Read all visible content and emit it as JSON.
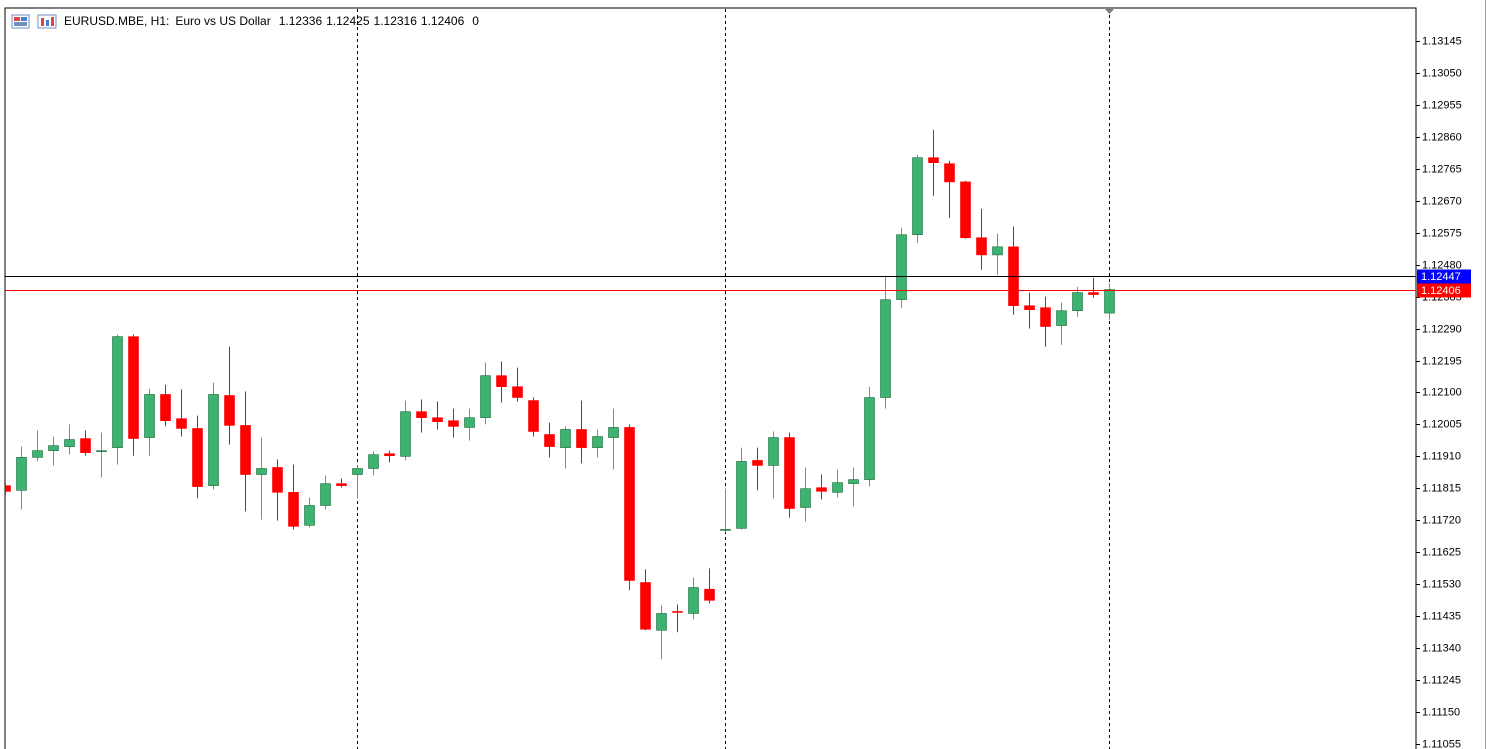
{
  "chart_data": {
    "type": "candlestick",
    "symbol": "EURUSD.MBE, H1:",
    "description": "Euro vs US Dollar",
    "last_volume": 0,
    "up_color": "#3cb371",
    "down_color": "#ff0000",
    "ylim": [
      1.1104,
      1.13243
    ],
    "yticks": [
      1.13145,
      {
        "value": 1.1305,
        "label": "1.13050"
      },
      1.12955,
      {
        "value": 1.1286,
        "label": "1.12860"
      },
      1.12765,
      {
        "value": 1.1267,
        "label": "1.12670"
      },
      1.12575,
      {
        "value": 1.1248,
        "label": "1.12480"
      },
      1.12385,
      {
        "value": 1.1229,
        "label": "1.12290"
      },
      1.12195,
      {
        "value": 1.121,
        "label": "1.12100"
      },
      1.12005,
      {
        "value": 1.1191,
        "label": "1.11910"
      },
      1.11815,
      {
        "value": 1.1172,
        "label": "1.11720"
      },
      1.11625,
      {
        "value": 1.1153,
        "label": "1.11530"
      },
      1.11435,
      {
        "value": 1.1134,
        "label": "1.11340"
      },
      1.11245,
      {
        "value": 1.1115,
        "label": "1.11150"
      },
      1.11055
    ],
    "ask": 1.12447,
    "bid": 1.12406,
    "open": [
      1.11823,
      1.11809,
      1.11907,
      1.11927,
      1.11939,
      1.11963,
      1.11924,
      1.11936,
      1.12266,
      1.11966,
      1.12094,
      1.12022,
      1.11993,
      1.11823,
      1.12091,
      1.12002,
      1.11856,
      1.11877,
      1.11803,
      1.11705,
      1.11764,
      1.11829,
      1.11856,
      1.11874,
      1.11918,
      1.1191,
      1.12043,
      1.12025,
      1.12016,
      1.11996,
      1.12025,
      1.1215,
      1.12117,
      1.12076,
      1.11975,
      1.11936,
      1.1199,
      1.11936,
      1.11966,
      1.11996,
      1.11535,
      1.11393,
      1.11449,
      1.11443,
      1.11515,
      1.1169,
      1.11696,
      1.11898,
      1.11883,
      1.11966,
      1.11758,
      1.11817,
      1.11803,
      1.11829,
      1.11841,
      1.12085,
      1.12376,
      1.12569,
      1.12798,
      1.1278,
      1.12726,
      1.1256,
      1.12509,
      1.12533,
      1.12358,
      1.12352,
      1.12299,
      1.12343,
      1.12397,
      1.12336
    ],
    "high": [
      1.11829,
      1.11939,
      1.11987,
      1.11969,
      1.12005,
      1.11987,
      1.11981,
      1.12272,
      1.12272,
      1.12111,
      1.12123,
      1.12109,
      1.12031,
      1.12129,
      1.12236,
      1.12103,
      1.11966,
      1.11901,
      1.11886,
      1.11788,
      1.11853,
      1.11844,
      1.11883,
      1.11924,
      1.11927,
      1.12076,
      1.12079,
      1.12073,
      1.12052,
      1.12052,
      1.12189,
      1.12192,
      1.12174,
      1.12085,
      1.1201,
      1.11999,
      1.12076,
      1.1199,
      1.12052,
      1.12005,
      1.11574,
      1.11467,
      1.1147,
      1.1155,
      1.11577,
      1.11814,
      1.11936,
      1.11936,
      1.11984,
      1.11981,
      1.11877,
      1.11856,
      1.11871,
      1.11877,
      1.12117,
      1.12444,
      1.1259,
      1.12806,
      1.12881,
      1.12789,
      1.12729,
      1.12646,
      1.12572,
      1.12593,
      1.12397,
      1.12385,
      1.12367,
      1.12414,
      1.12441,
      1.12425
    ],
    "low": [
      1.11797,
      1.11752,
      1.11895,
      1.11883,
      1.11915,
      1.11912,
      1.11847,
      1.11886,
      1.11912,
      1.11912,
      1.11999,
      1.11969,
      1.11785,
      1.11812,
      1.11945,
      1.11746,
      1.11722,
      1.11719,
      1.11693,
      1.11699,
      1.11752,
      1.11817,
      1.11785,
      1.11853,
      1.11892,
      1.11898,
      1.11981,
      1.1199,
      1.11966,
      1.11957,
      1.12005,
      1.1207,
      1.12073,
      1.11969,
      1.11907,
      1.11874,
      1.11889,
      1.11907,
      1.11871,
      1.11512,
      1.11393,
      1.11307,
      1.11387,
      1.11425,
      1.11473,
      1.11684,
      1.11693,
      1.11809,
      1.11785,
      1.11728,
      1.11716,
      1.11782,
      1.11788,
      1.11761,
      1.1182,
      1.12052,
      1.12352,
      1.12545,
      1.12685,
      1.12619,
      1.12557,
      1.12465,
      1.1245,
      1.12331,
      1.1229,
      1.12236,
      1.12242,
      1.12325,
      1.12382,
      1.12316
    ],
    "close": [
      1.11806,
      1.11907,
      1.11927,
      1.11942,
      1.1196,
      1.11921,
      1.11927,
      1.12266,
      1.11963,
      1.12094,
      1.12016,
      1.11993,
      1.1182,
      1.12094,
      1.12002,
      1.11856,
      1.11874,
      1.11803,
      1.11702,
      1.11764,
      1.11829,
      1.11823,
      1.11874,
      1.11915,
      1.11912,
      1.12043,
      1.12025,
      1.12013,
      1.11999,
      1.12025,
      1.1215,
      1.12117,
      1.12085,
      1.11984,
      1.11939,
      1.1199,
      1.11936,
      1.11969,
      1.11996,
      1.11541,
      1.11396,
      1.11443,
      1.11446,
      1.1152,
      1.11482,
      1.11693,
      1.11895,
      1.11883,
      1.11966,
      1.11755,
      1.11814,
      1.11806,
      1.11832,
      1.11841,
      1.12085,
      1.12376,
      1.12569,
      1.12798,
      1.12783,
      1.12726,
      1.1256,
      1.12509,
      1.12533,
      1.12358,
      1.12346,
      1.12296,
      1.12343,
      1.12397,
      1.12391,
      1.12406
    ]
  }
}
